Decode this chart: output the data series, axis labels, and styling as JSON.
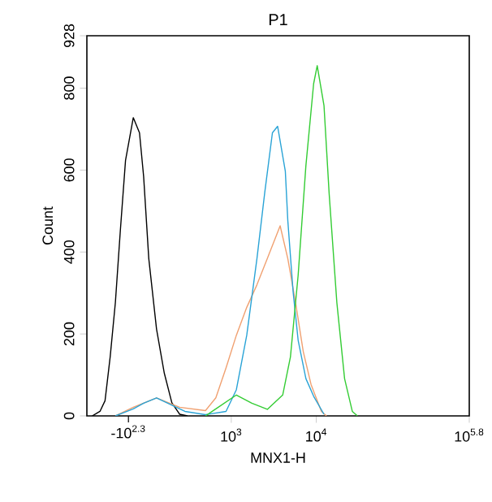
{
  "chart_data": {
    "type": "line",
    "title": "P1",
    "xlabel": "MNX1-H",
    "ylabel": "Count",
    "log": "x",
    "xlim": [
      20,
      630957
    ],
    "ylim": [
      0,
      928
    ],
    "xticks": [
      {
        "value": 1000,
        "label": "10$^{3}$"
      },
      {
        "value": 10000,
        "label": "10$^{4}$"
      },
      {
        "value": 630957,
        "label": "10$^{5.8}$"
      }
    ],
    "yticks": [
      0,
      200,
      400,
      600,
      800,
      928
    ],
    "annotations": [
      "-10$^{2.3}$"
    ],
    "series": [
      {
        "color": "#000000",
        "x": [
          23.1,
          28.5,
          32.7,
          37.6,
          43.3,
          49.5,
          57.0,
          70.3,
          83.2,
          93.1,
          107,
          132,
          163,
          200,
          247,
          305
        ],
        "values": [
          0,
          11,
          37,
          144,
          277,
          452,
          624,
          728,
          691,
          584,
          384,
          212,
          104,
          32,
          4,
          0
        ]
      },
      {
        "color": "#f0a070",
        "x": [
          43.3,
          70.3,
          132,
          247,
          497,
          658,
          867,
          1148,
          1521,
          2004,
          2655,
          3758,
          4624,
          5702,
          7031,
          8670,
          11482,
          13183
        ],
        "values": [
          0,
          21,
          44,
          21,
          13,
          44,
          117,
          197,
          265,
          320,
          384,
          464,
          384,
          277,
          157,
          77,
          11,
          0
        ]
      },
      {
        "color": "#29a3d6",
        "x": [
          43.3,
          70.3,
          93.1,
          132,
          285,
          497,
          867,
          1148,
          1521,
          2004,
          2472,
          3048,
          3508,
          4325,
          4624,
          5333,
          6124,
          7551,
          9311,
          12331
        ],
        "values": [
          0,
          17,
          31,
          44,
          11,
          3,
          11,
          64,
          197,
          384,
          544,
          691,
          707,
          597,
          477,
          304,
          184,
          91,
          48,
          4
        ]
      },
      {
        "color": "#33cc33",
        "x": [
          497,
          658,
          1148,
          1746,
          2655,
          4027,
          4966,
          6124,
          7551,
          9311,
          10257,
          12331,
          14158,
          17458,
          21528,
          26546,
          30479
        ],
        "values": [
          0,
          17,
          51,
          31,
          16,
          51,
          144,
          344,
          611,
          811,
          855,
          757,
          544,
          277,
          91,
          11,
          0
        ]
      }
    ],
    "line_style": "solid"
  }
}
